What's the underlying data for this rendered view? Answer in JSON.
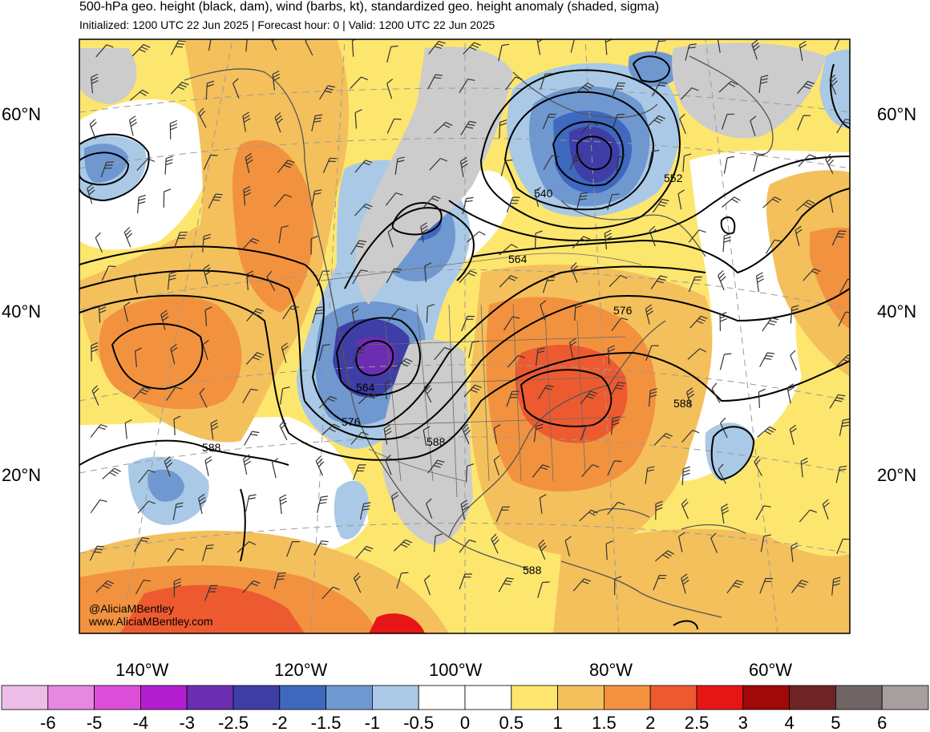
{
  "header": {
    "title": "500-hPa geo. height (black, dam), wind (barbs, kt), standardized geo. height anomaly (shaded, sigma)",
    "subtitle": "Initialized: 1200 UTC 22 Jun 2025 | Forecast hour: 0 | Valid: 1200 UTC 22 Jun 2025"
  },
  "map": {
    "lat_labels_left": [
      "60°N",
      "40°N",
      "20°N"
    ],
    "lat_labels_right": [
      "60°N",
      "40°N",
      "20°N"
    ],
    "lon_labels": [
      "140°W",
      "120°W",
      "100°W",
      "80°W",
      "60°W"
    ],
    "contour_labels": [
      "540",
      "552",
      "564",
      "576",
      "564",
      "576",
      "588",
      "588",
      "588",
      "588"
    ],
    "credits": [
      "@AliciaMBentley",
      "www.AliciaMBentley.com"
    ]
  },
  "colorbar": {
    "labels": [
      "-6",
      "-5",
      "-4",
      "-3",
      "-2.5",
      "-2",
      "-1.5",
      "-1",
      "-0.5",
      "0",
      "0.5",
      "1",
      "1.5",
      "2",
      "2.5",
      "3",
      "4",
      "5",
      "6"
    ],
    "colors": [
      "#ecbde6",
      "#e687e0",
      "#dd4fd9",
      "#b31fd0",
      "#6b2eb2",
      "#3f3da6",
      "#3f68bf",
      "#6f98d0",
      "#a9c9e6",
      "#ffffff",
      "#ffffff",
      "#fde66e",
      "#f4c05c",
      "#f2923f",
      "#ee5a30",
      "#e71616",
      "#a10808",
      "#6e2424",
      "#6f6565",
      "#a79e9e"
    ]
  }
}
